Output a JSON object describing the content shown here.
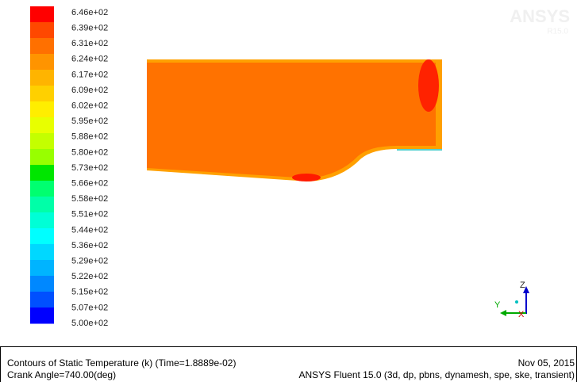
{
  "colorbar": {
    "labels": [
      "6.46e+02",
      "6.39e+02",
      "6.31e+02",
      "6.24e+02",
      "6.17e+02",
      "6.09e+02",
      "6.02e+02",
      "5.95e+02",
      "5.88e+02",
      "5.80e+02",
      "5.73e+02",
      "5.66e+02",
      "5.58e+02",
      "5.51e+02",
      "5.44e+02",
      "5.36e+02",
      "5.29e+02",
      "5.22e+02",
      "5.15e+02",
      "5.07e+02",
      "5.00e+02"
    ]
  },
  "watermark": {
    "brand": "ANSYS",
    "release": "R15.0"
  },
  "axes": {
    "z": "Z",
    "y": "Y",
    "x": "X"
  },
  "footer": {
    "title": "Contours of Static Temperature (k)  (Time=1.8889e-02)",
    "date": "Nov 05, 2015",
    "angle": "Crank Angle=740.00(deg)",
    "solver": "ANSYS Fluent 15.0 (3d, dp, pbns, dynamesh, spe, ske, transient)"
  }
}
